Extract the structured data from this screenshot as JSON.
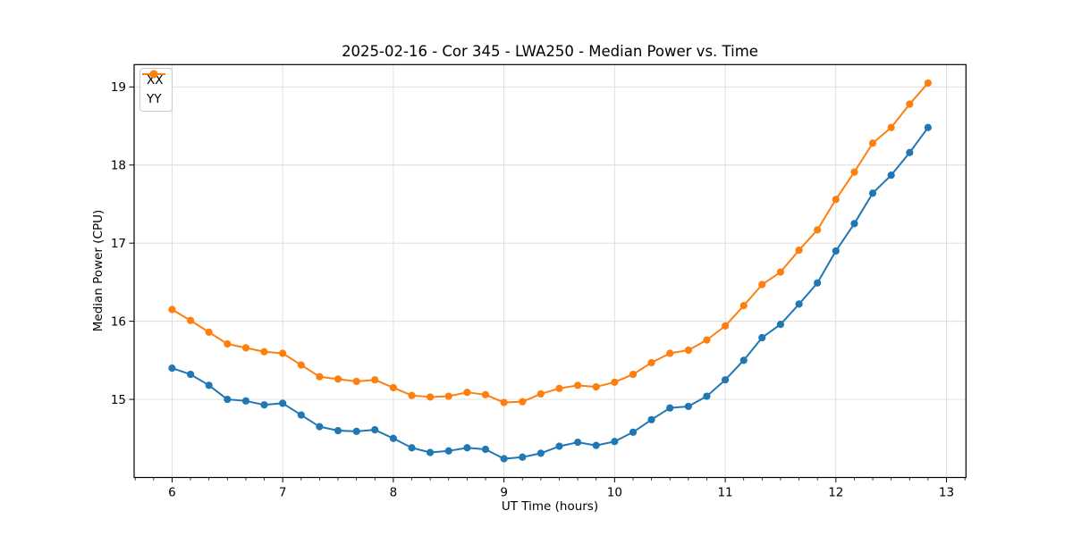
{
  "chart_data": {
    "type": "line",
    "title": "2025-02-16 - Cor 345 - LWA250 - Median Power vs. Time",
    "xlabel": "UT Time (hours)",
    "ylabel": "Median Power (CPU)",
    "xlim": [
      5.657,
      13.176
    ],
    "ylim": [
      14.0,
      19.286
    ],
    "xticks": [
      6,
      7,
      8,
      9,
      10,
      11,
      12,
      13
    ],
    "yticks": [
      15,
      16,
      17,
      18,
      19
    ],
    "x_minor_divisions_per_unit": 6,
    "grid": true,
    "grid_color": "#dcdcdc",
    "legend_position": "upper-left",
    "x": [
      6.0,
      6.167,
      6.333,
      6.5,
      6.667,
      6.833,
      7.0,
      7.167,
      7.333,
      7.5,
      7.667,
      7.833,
      8.0,
      8.167,
      8.333,
      8.5,
      8.667,
      8.833,
      9.0,
      9.167,
      9.333,
      9.5,
      9.667,
      9.833,
      10.0,
      10.167,
      10.333,
      10.5,
      10.667,
      10.833,
      11.0,
      11.167,
      11.333,
      11.5,
      11.667,
      11.833,
      12.0,
      12.167,
      12.333,
      12.5,
      12.667,
      12.833
    ],
    "series": [
      {
        "name": "XX",
        "color": "#1f77b4",
        "values": [
          15.4,
          15.32,
          15.18,
          15.0,
          14.98,
          14.93,
          14.95,
          14.8,
          14.65,
          14.6,
          14.59,
          14.61,
          14.5,
          14.38,
          14.32,
          14.34,
          14.38,
          14.36,
          14.24,
          14.26,
          14.31,
          14.4,
          14.45,
          14.41,
          14.46,
          14.58,
          14.74,
          14.89,
          14.91,
          15.04,
          15.25,
          15.5,
          15.79,
          15.96,
          16.22,
          16.49,
          16.9,
          17.25,
          17.64,
          17.87,
          18.16,
          18.48
        ]
      },
      {
        "name": "YY",
        "color": "#ff7f0e",
        "values": [
          16.15,
          16.01,
          15.86,
          15.71,
          15.66,
          15.61,
          15.59,
          15.44,
          15.29,
          15.26,
          15.23,
          15.25,
          15.15,
          15.05,
          15.03,
          15.04,
          15.09,
          15.06,
          14.96,
          14.97,
          15.07,
          15.14,
          15.18,
          15.16,
          15.22,
          15.32,
          15.47,
          15.59,
          15.63,
          15.76,
          15.94,
          16.2,
          16.47,
          16.63,
          16.91,
          17.17,
          17.56,
          17.91,
          18.28,
          18.48,
          18.78,
          19.05
        ]
      }
    ]
  }
}
